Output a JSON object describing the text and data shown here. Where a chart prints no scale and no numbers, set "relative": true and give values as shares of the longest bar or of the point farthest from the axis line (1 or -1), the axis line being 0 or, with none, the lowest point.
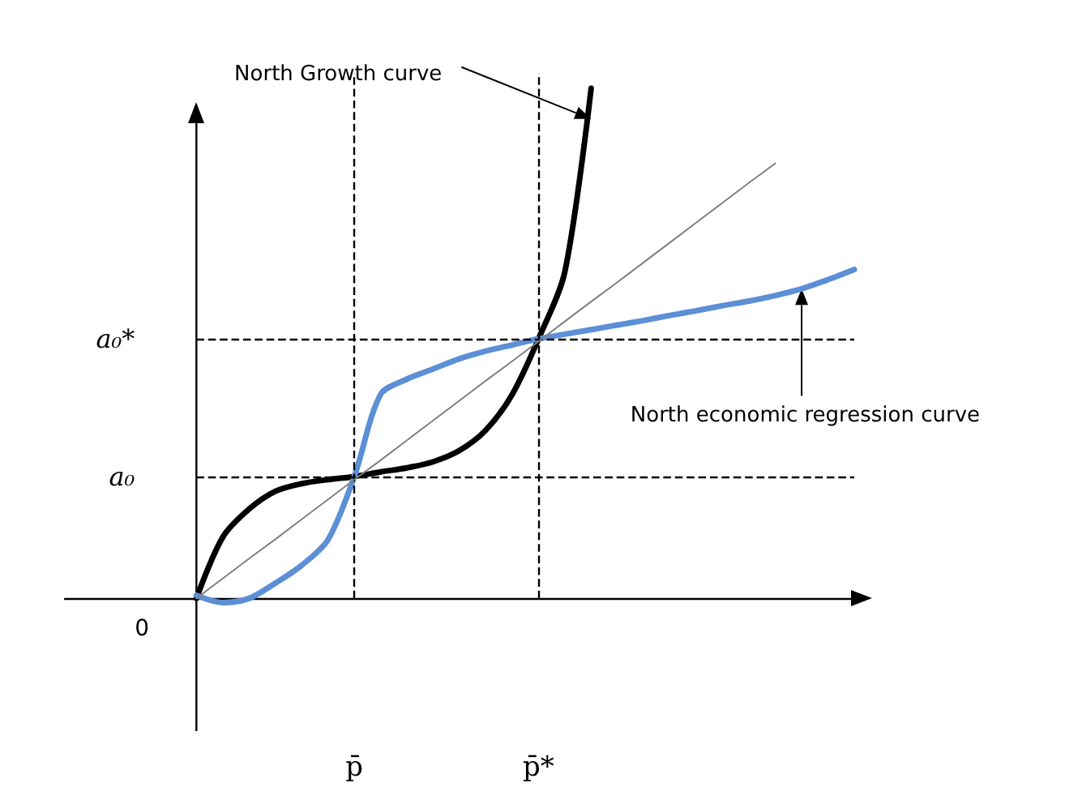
{
  "chart_data": {
    "type": "line",
    "relative": true,
    "grid": false,
    "marker": "none",
    "categories": [
      null,
      null,
      null,
      null,
      null,
      null,
      null,
      null,
      null,
      null,
      null,
      "p̄",
      null,
      null,
      null,
      null,
      null,
      null,
      "p̄*",
      null,
      null,
      null,
      null,
      null,
      null,
      null,
      null,
      null,
      null,
      null,
      null
    ],
    "series": [
      {
        "color": "#000000",
        "values": [
          null,
          null,
          null,
          null,
          null,
          0,
          0.12,
          0.175,
          0.21,
          0.225,
          0.233,
          0.239,
          0.248,
          0.256,
          0.268,
          0.29,
          0.33,
          0.4,
          0.509,
          0.64,
          1,
          null,
          null,
          null,
          null,
          null,
          null,
          null,
          null,
          null,
          null
        ]
      },
      {
        "color": "#5b8fd6",
        "values": [
          null,
          null,
          null,
          null,
          null,
          0.006,
          -0.008,
          0,
          0.03,
          0.065,
          0.115,
          0.239,
          0.4,
          0.43,
          0.45,
          0.47,
          0.485,
          0.497,
          0.509,
          0.518,
          0.527,
          0.536,
          0.545,
          0.555,
          0.564,
          0.574,
          0.583,
          0.594,
          0.607,
          0.625,
          0.645
        ]
      },
      {
        "color": "#808080",
        "values": [
          null,
          null,
          null,
          null,
          null,
          0,
          0.039,
          0.078,
          0.116,
          0.155,
          0.194,
          0.233,
          0.271,
          0.31,
          0.349,
          0.388,
          0.427,
          0.465,
          0.504,
          0.543,
          0.582,
          0.62,
          0.659,
          0.698,
          0.737,
          0.776,
          0.815,
          0.853,
          null,
          null,
          null
        ]
      }
    ],
    "ref_lines": [
      {
        "axis": "y",
        "value": 0.239,
        "label": "a₀",
        "line_style": "dashed",
        "color": "#000000"
      },
      {
        "axis": "y",
        "value": 0.509,
        "label": "a₀*",
        "line_style": "dashed",
        "color": "#000000"
      },
      {
        "axis": "x",
        "value": "p̄",
        "line_style": "dashed",
        "color": "#000000"
      },
      {
        "axis": "x",
        "value": "p̄*",
        "line_style": "dashed",
        "color": "#000000"
      }
    ],
    "annotations": [
      "North Growth curve",
      "North economic regression curve",
      "0"
    ]
  }
}
